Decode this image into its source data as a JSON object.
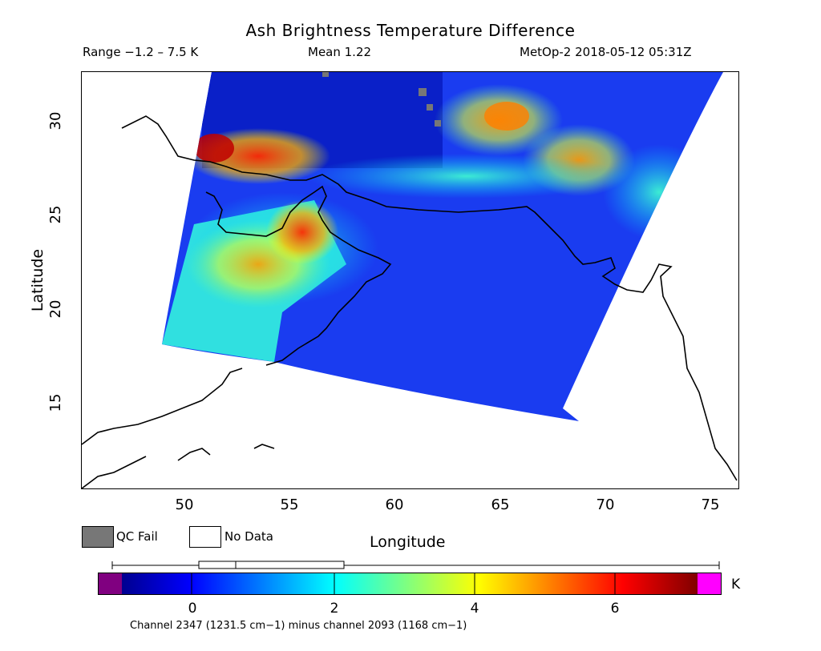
{
  "header": {
    "title": "Ash Brightness Temperature Difference",
    "range": "Range −1.2 – 7.5 K",
    "mean": "Mean 1.22",
    "satellite_time": "MetOp-2 2018-05-12 05:31Z"
  },
  "axes": {
    "x_label": "Longitude",
    "y_label": "Latitude",
    "x_ticks": [
      "50",
      "55",
      "60",
      "65",
      "70",
      "75"
    ],
    "y_ticks": [
      "30",
      "25",
      "20",
      "15"
    ],
    "lon_range": [
      45.0,
      76.5
    ],
    "lat_range": [
      10.4,
      32.6
    ]
  },
  "legend": {
    "qc_fail": "QC Fail",
    "no_data": "No Data",
    "qc_fail_color": "#777777",
    "no_data_color": "#ffffff"
  },
  "colorbar": {
    "ticks": [
      "0",
      "2",
      "4",
      "6"
    ],
    "unit": "K",
    "range": [
      -1.2,
      7.5
    ],
    "under_color": "#800080",
    "over_color": "#ff00ff"
  },
  "footer": {
    "channel_text": "Channel 2347 (1231.5 cm−1) minus channel 2093 (1168 cm−1)"
  },
  "colors": {
    "low": "#0000ff",
    "mid": "#00ffff",
    "high": "#ff0000",
    "coastline": "#000000"
  }
}
